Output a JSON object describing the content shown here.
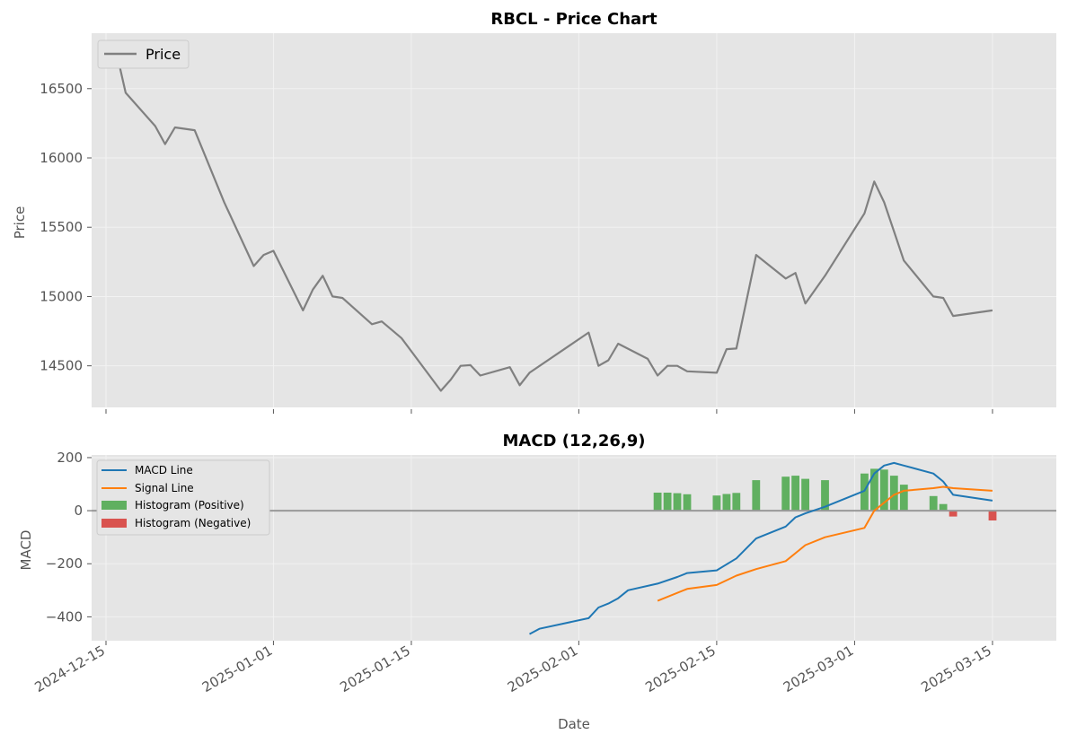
{
  "chart_data": [
    {
      "type": "line",
      "title": "RBCL - Price Chart",
      "xlabel": "",
      "ylabel": "Price",
      "ylim": [
        14200,
        16900
      ],
      "yticks": [
        14500,
        15000,
        15500,
        16000,
        16500
      ],
      "legend": {
        "position": "top-left",
        "entries": [
          "Price"
        ]
      },
      "grid": true,
      "series": [
        {
          "name": "Price",
          "color": "#808080",
          "points": [
            [
              "2024-12-16",
              16780
            ],
            [
              "2024-12-17",
              16470
            ],
            [
              "2024-12-20",
              16230
            ],
            [
              "2024-12-21",
              16100
            ],
            [
              "2024-12-22",
              16220
            ],
            [
              "2024-12-24",
              16200
            ],
            [
              "2024-12-27",
              15680
            ],
            [
              "2024-12-30",
              15220
            ],
            [
              "2024-12-31",
              15300
            ],
            [
              "2025-01-01",
              15330
            ],
            [
              "2025-01-04",
              14900
            ],
            [
              "2025-01-05",
              15050
            ],
            [
              "2025-01-06",
              15150
            ],
            [
              "2025-01-07",
              15000
            ],
            [
              "2025-01-08",
              14990
            ],
            [
              "2025-01-11",
              14800
            ],
            [
              "2025-01-12",
              14820
            ],
            [
              "2025-01-14",
              14700
            ],
            [
              "2025-01-18",
              14320
            ],
            [
              "2025-01-19",
              14400
            ],
            [
              "2025-01-20",
              14500
            ],
            [
              "2025-01-21",
              14505
            ],
            [
              "2025-01-22",
              14430
            ],
            [
              "2025-01-25",
              14490
            ],
            [
              "2025-01-26",
              14360
            ],
            [
              "2025-01-27",
              14450
            ],
            [
              "2025-02-02",
              14740
            ],
            [
              "2025-02-03",
              14500
            ],
            [
              "2025-02-04",
              14540
            ],
            [
              "2025-02-05",
              14660
            ],
            [
              "2025-02-08",
              14550
            ],
            [
              "2025-02-09",
              14430
            ],
            [
              "2025-02-10",
              14500
            ],
            [
              "2025-02-11",
              14500
            ],
            [
              "2025-02-12",
              14460
            ],
            [
              "2025-02-15",
              14450
            ],
            [
              "2025-02-16",
              14620
            ],
            [
              "2025-02-17",
              14625
            ],
            [
              "2025-02-19",
              15300
            ],
            [
              "2025-02-22",
              15130
            ],
            [
              "2025-02-23",
              15170
            ],
            [
              "2025-02-24",
              14950
            ],
            [
              "2025-02-26",
              15150
            ],
            [
              "2025-03-02",
              15600
            ],
            [
              "2025-03-03",
              15830
            ],
            [
              "2025-03-04",
              15680
            ],
            [
              "2025-03-05",
              15470
            ],
            [
              "2025-03-06",
              15260
            ],
            [
              "2025-03-09",
              15000
            ],
            [
              "2025-03-10",
              14990
            ],
            [
              "2025-03-11",
              14860
            ],
            [
              "2025-03-15",
              14900
            ]
          ]
        }
      ]
    },
    {
      "type": "line",
      "title": "MACD (12,26,9)",
      "xlabel": "Date",
      "ylabel": "MACD",
      "ylim": [
        -490,
        210
      ],
      "yticks": [
        -400,
        -200,
        0,
        200
      ],
      "xticks": [
        "2024-12-15",
        "2025-01-01",
        "2025-01-15",
        "2025-02-01",
        "2025-02-15",
        "2025-03-01",
        "2025-03-15"
      ],
      "legend": {
        "position": "top-left",
        "entries": [
          "MACD Line",
          "Signal Line",
          "Histogram (Positive)",
          "Histogram (Negative)"
        ]
      },
      "grid": true,
      "zero_line_color": "#999999",
      "series": [
        {
          "name": "MACD Line",
          "color": "#1f77b4",
          "points": [
            [
              "2025-01-27",
              -465
            ],
            [
              "2025-01-28",
              -445
            ],
            [
              "2025-02-02",
              -405
            ],
            [
              "2025-02-03",
              -365
            ],
            [
              "2025-02-04",
              -350
            ],
            [
              "2025-02-05",
              -330
            ],
            [
              "2025-02-06",
              -300
            ],
            [
              "2025-02-09",
              -275
            ],
            [
              "2025-02-11",
              -250
            ],
            [
              "2025-02-12",
              -235
            ],
            [
              "2025-02-15",
              -225
            ],
            [
              "2025-02-17",
              -180
            ],
            [
              "2025-02-19",
              -105
            ],
            [
              "2025-02-22",
              -60
            ],
            [
              "2025-02-23",
              -25
            ],
            [
              "2025-02-24",
              -10
            ],
            [
              "2025-02-26",
              15
            ],
            [
              "2025-03-02",
              75
            ],
            [
              "2025-03-03",
              140
            ],
            [
              "2025-03-04",
              170
            ],
            [
              "2025-03-05",
              180
            ],
            [
              "2025-03-06",
              170
            ],
            [
              "2025-03-09",
              140
            ],
            [
              "2025-03-10",
              110
            ],
            [
              "2025-03-11",
              60
            ],
            [
              "2025-03-15",
              38
            ]
          ]
        },
        {
          "name": "Signal Line",
          "color": "#ff7f0e",
          "points": [
            [
              "2025-02-09",
              -340
            ],
            [
              "2025-02-12",
              -295
            ],
            [
              "2025-02-15",
              -280
            ],
            [
              "2025-02-17",
              -245
            ],
            [
              "2025-02-19",
              -220
            ],
            [
              "2025-02-22",
              -190
            ],
            [
              "2025-02-24",
              -130
            ],
            [
              "2025-02-26",
              -100
            ],
            [
              "2025-03-02",
              -65
            ],
            [
              "2025-03-03",
              0
            ],
            [
              "2025-03-04",
              30
            ],
            [
              "2025-03-05",
              60
            ],
            [
              "2025-03-06",
              75
            ],
            [
              "2025-03-09",
              85
            ],
            [
              "2025-03-10",
              90
            ],
            [
              "2025-03-11",
              85
            ],
            [
              "2025-03-15",
              75
            ]
          ]
        },
        {
          "name": "Histogram (Positive)",
          "color": "#60b060",
          "type": "bar",
          "points": [
            [
              "2025-02-09",
              68
            ],
            [
              "2025-02-10",
              68
            ],
            [
              "2025-02-11",
              66
            ],
            [
              "2025-02-12",
              62
            ],
            [
              "2025-02-15",
              57
            ],
            [
              "2025-02-16",
              63
            ],
            [
              "2025-02-17",
              67
            ],
            [
              "2025-02-19",
              115
            ],
            [
              "2025-02-22",
              128
            ],
            [
              "2025-02-23",
              132
            ],
            [
              "2025-02-24",
              120
            ],
            [
              "2025-02-26",
              115
            ],
            [
              "2025-03-02",
              140
            ],
            [
              "2025-03-03",
              158
            ],
            [
              "2025-03-04",
              155
            ],
            [
              "2025-03-05",
              132
            ],
            [
              "2025-03-06",
              98
            ],
            [
              "2025-03-09",
              55
            ],
            [
              "2025-03-10",
              25
            ]
          ]
        },
        {
          "name": "Histogram (Negative)",
          "color": "#d9534f",
          "type": "bar",
          "points": [
            [
              "2025-03-11",
              -22
            ],
            [
              "2025-03-15",
              -37
            ]
          ]
        }
      ]
    }
  ]
}
